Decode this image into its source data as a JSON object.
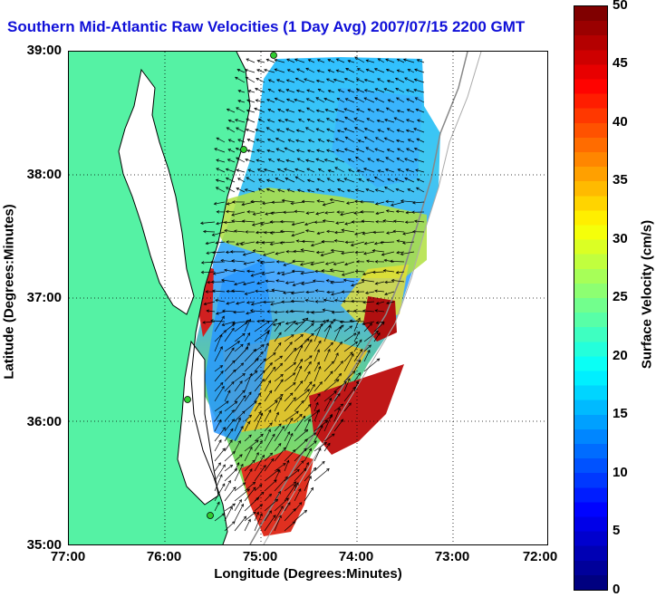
{
  "title": "Southern Mid-Atlantic Raw Velocities (1 Day Avg) 2007/07/15 2200 GMT",
  "axes": {
    "xlabel": "Longitude (Degrees:Minutes)",
    "ylabel": "Latitude (Degrees:Minutes)",
    "xticks": [
      "77:00",
      "76:00",
      "75:00",
      "74:00",
      "73:00",
      "72:00"
    ],
    "yticks": [
      "39:00",
      "38:00",
      "37:00",
      "36:00",
      "35:00"
    ],
    "lon_range": [
      -77,
      -72
    ],
    "lat_range": [
      35,
      39
    ]
  },
  "colorbar": {
    "label": "Surface Velocity (cm/s)",
    "ticks": [
      "50",
      "45",
      "40",
      "35",
      "30",
      "25",
      "20",
      "15",
      "10",
      "5",
      "0"
    ],
    "range": [
      0,
      50
    ],
    "scale": "jet"
  },
  "colors": {
    "land": "#55f2a4",
    "title": "#1010d8",
    "station_marker": "#30cc30"
  }
}
